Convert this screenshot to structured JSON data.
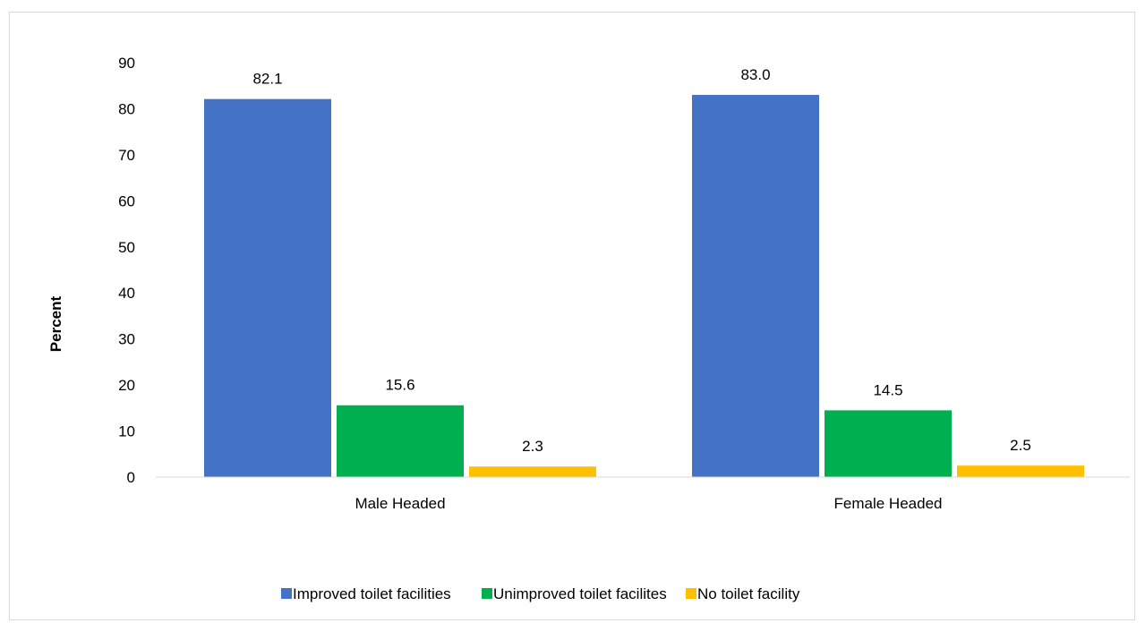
{
  "chart_data": {
    "type": "bar",
    "categories": [
      "Male Headed",
      "Female Headed"
    ],
    "series": [
      {
        "name": "Improved toilet facilities",
        "values": [
          82.1,
          83.0
        ],
        "labels": [
          "82.1",
          "83.0"
        ],
        "color": "#4472c4"
      },
      {
        "name": "Unimproved toilet facilites",
        "values": [
          15.6,
          14.5
        ],
        "labels": [
          "15.6",
          "14.5"
        ],
        "color": "#00b050"
      },
      {
        "name": "No toilet facility",
        "values": [
          2.3,
          2.5
        ],
        "labels": [
          "2.3",
          "2.5"
        ],
        "color": "#ffc000"
      }
    ],
    "ylabel": "Percent",
    "ylim": [
      0,
      90
    ],
    "yticks": [
      "0",
      "10",
      "20",
      "30",
      "40",
      "50",
      "60",
      "70",
      "80",
      "90"
    ],
    "grid": false,
    "legend_position": "bottom"
  }
}
